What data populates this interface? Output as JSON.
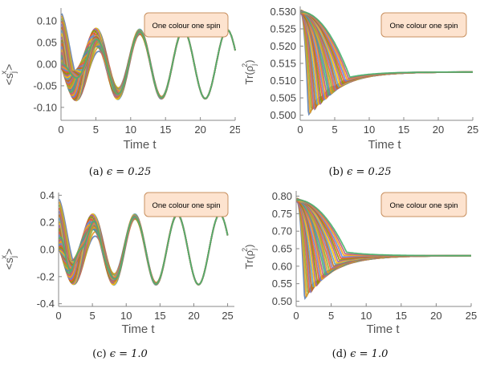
{
  "figure": {
    "panels": [
      {
        "caption_label": "(a)",
        "caption_math": "ϵ = 0.25"
      },
      {
        "caption_label": "(b)",
        "caption_math": "ϵ = 0.25"
      },
      {
        "caption_label": "(c)",
        "caption_math": "ϵ = 1.0"
      },
      {
        "caption_label": "(d)",
        "caption_math": "ϵ = 1.0"
      }
    ]
  },
  "palette": [
    "#5e81b5",
    "#e19c24",
    "#8fb032",
    "#eb6235",
    "#8778b3",
    "#c56e1a",
    "#5d9ec7",
    "#ffbf00",
    "#a5609d",
    "#929600",
    "#e95536",
    "#6685d9",
    "#f89f13",
    "#bc5b80",
    "#47b66d"
  ],
  "chart_data": [
    {
      "type": "line",
      "xlabel": "Time t",
      "ylabel": "<s_j^x>",
      "legend": "One colour one spin",
      "xlim": [
        0,
        25
      ],
      "ylim": [
        -0.13,
        0.13
      ],
      "xticks": [
        "0",
        "5",
        "10",
        "15",
        "20",
        "25"
      ],
      "yticks": [
        "-0.10",
        "-0.05",
        "0.00",
        "0.05",
        "0.10"
      ],
      "ytick_values": [
        -0.1,
        -0.05,
        0.0,
        0.05,
        0.1
      ],
      "series_model": {
        "kind": "spin_x",
        "count": 30,
        "period": 6.28,
        "initial_min": 0.0,
        "initial_max": 0.12,
        "late_amplitude": 0.08,
        "decay_time": 4
      }
    },
    {
      "type": "line",
      "xlabel": "Time t",
      "ylabel": "Tr(ρ_j^2)",
      "legend": "One colour one spin",
      "xlim": [
        0,
        25
      ],
      "ylim": [
        0.4985,
        0.5315
      ],
      "xticks": [
        "0",
        "5",
        "10",
        "15",
        "20",
        "25"
      ],
      "yticks": [
        "0.500",
        "0.505",
        "0.510",
        "0.515",
        "0.520",
        "0.525",
        "0.530"
      ],
      "ytick_values": [
        0.5,
        0.505,
        0.51,
        0.515,
        0.52,
        0.525,
        0.53
      ],
      "series_model": {
        "kind": "purity",
        "count": 30,
        "start": 0.53,
        "end": 0.5125,
        "dip_min": 0.5005,
        "dip_max": 0.511
      }
    },
    {
      "type": "line",
      "xlabel": "Time t",
      "ylabel": "<s_j^x>",
      "legend": "One colour one spin",
      "xlim": [
        0,
        26
      ],
      "ylim": [
        -0.42,
        0.42
      ],
      "xticks": [
        "0",
        "5",
        "10",
        "15",
        "20",
        "25"
      ],
      "yticks": [
        "-0.4",
        "-0.2",
        "0.0",
        "0.2",
        "0.4"
      ],
      "ytick_values": [
        -0.4,
        -0.2,
        0.0,
        0.2,
        0.4
      ],
      "series_model": {
        "kind": "spin_x",
        "count": 30,
        "period": 6.28,
        "initial_min": -0.1,
        "initial_max": 0.38,
        "late_amplitude": 0.26,
        "decay_time": 4
      }
    },
    {
      "type": "line",
      "xlabel": "Time t",
      "ylabel": "Tr(ρ_j^2)",
      "legend": "One colour one spin",
      "xlim": [
        0,
        25
      ],
      "ylim": [
        0.485,
        0.815
      ],
      "xticks": [
        "0",
        "5",
        "10",
        "15",
        "20",
        "25"
      ],
      "yticks": [
        "0.50",
        "0.55",
        "0.60",
        "0.65",
        "0.70",
        "0.75",
        "0.80"
      ],
      "ytick_values": [
        0.5,
        0.55,
        0.6,
        0.65,
        0.7,
        0.75,
        0.8
      ],
      "series_model": {
        "kind": "purity",
        "count": 30,
        "start": 0.79,
        "end": 0.63,
        "dip_min": 0.51,
        "dip_max": 0.64
      }
    }
  ]
}
